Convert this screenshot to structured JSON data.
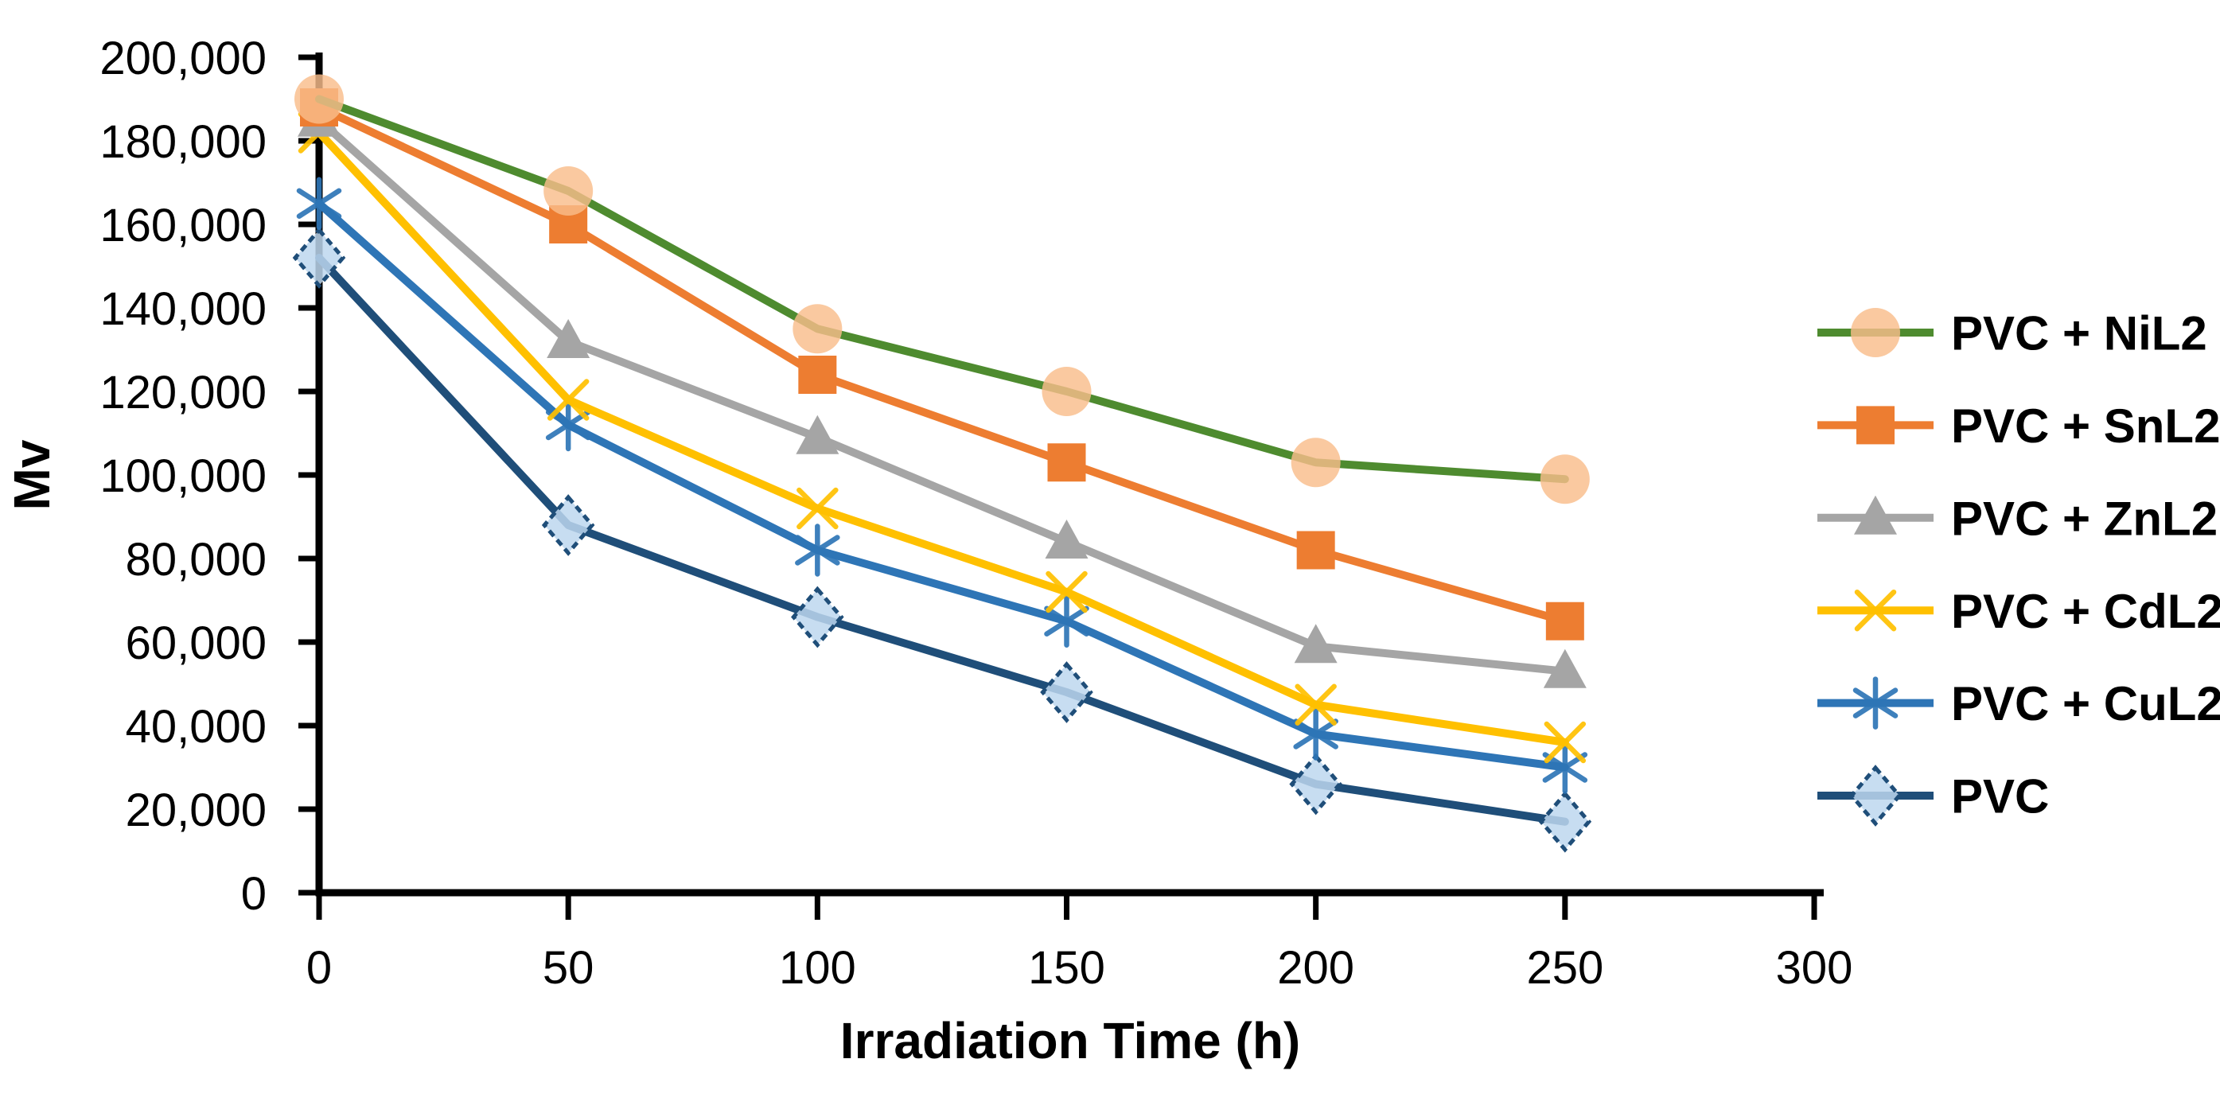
{
  "figure": {
    "background": "#FFFFFF",
    "axis_color": "#000000"
  },
  "chart_data": {
    "type": "line",
    "title": "",
    "xlabel": "Irradiation Time (h)",
    "ylabel": "Mv",
    "xlim": [
      0,
      300
    ],
    "ylim": [
      0,
      200000
    ],
    "xticks": [
      0,
      50,
      100,
      150,
      200,
      250,
      300
    ],
    "yticks": [
      0,
      20000,
      40000,
      60000,
      80000,
      100000,
      120000,
      140000,
      160000,
      180000,
      200000
    ],
    "grid": false,
    "legend_position": "right",
    "x": [
      0,
      50,
      100,
      150,
      200,
      250
    ],
    "series": [
      {
        "name": "PVC + NiL2",
        "line_color": "#4E8B2F",
        "marker": "circle",
        "marker_color": "#F9BD8B",
        "values": [
          190000,
          168000,
          135000,
          120000,
          103000,
          99000
        ]
      },
      {
        "name": "PVC + SnL2",
        "line_color": "#ED7D31",
        "marker": "square",
        "marker_color": "#ED7D31",
        "values": [
          188000,
          160000,
          124000,
          103000,
          82000,
          65000
        ]
      },
      {
        "name": "PVC + ZnL2",
        "line_color": "#A5A5A5",
        "marker": "triangle",
        "marker_color": "#A5A5A5",
        "values": [
          185000,
          132000,
          109000,
          84000,
          59000,
          53000
        ]
      },
      {
        "name": "PVC + CdL2",
        "line_color": "#FFC000",
        "marker": "x",
        "marker_color": "#FFC000",
        "values": [
          182000,
          118000,
          92000,
          72000,
          45000,
          36000
        ]
      },
      {
        "name": "PVC + CuL2",
        "line_color": "#2E75B6",
        "marker": "asterisk",
        "marker_color": "#2E75B6",
        "values": [
          165000,
          112000,
          82000,
          65000,
          38000,
          30000
        ]
      },
      {
        "name": "PVC",
        "line_color": "#1F4E79",
        "marker": "diamond",
        "marker_color": "#BDD7EE",
        "marker_border": "#1F4E79",
        "values": [
          152000,
          88000,
          66000,
          48000,
          26000,
          17000
        ]
      }
    ]
  }
}
